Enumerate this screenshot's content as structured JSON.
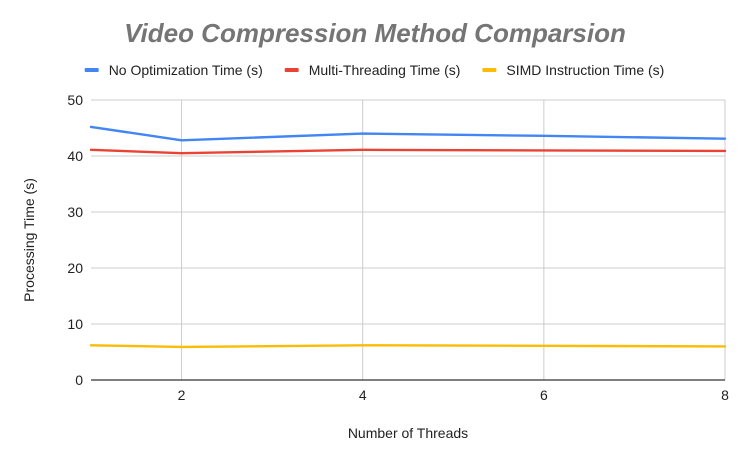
{
  "chart_data": {
    "type": "line",
    "title": "Video Compression Method Comparsion",
    "xlabel": "Number of Threads",
    "ylabel": "Processing Time (s)",
    "x": [
      1,
      2,
      4,
      6,
      8
    ],
    "xlim": [
      1,
      8
    ],
    "ylim": [
      0,
      50
    ],
    "xticks": [
      2,
      4,
      6,
      8
    ],
    "yticks": [
      0,
      10,
      20,
      30,
      40,
      50
    ],
    "grid": true,
    "legend_position": "top",
    "series": [
      {
        "name": "No Optimization Time (s)",
        "color": "#4285F4",
        "values": [
          45.2,
          42.8,
          44.0,
          43.6,
          43.1
        ]
      },
      {
        "name": "Multi-Threading Time (s)",
        "color": "#EA4335",
        "values": [
          41.1,
          40.5,
          41.1,
          41.0,
          40.9
        ]
      },
      {
        "name": "SIMD Instruction Time (s)",
        "color": "#FBBC04",
        "values": [
          6.2,
          5.9,
          6.2,
          6.1,
          6.0
        ]
      }
    ]
  }
}
